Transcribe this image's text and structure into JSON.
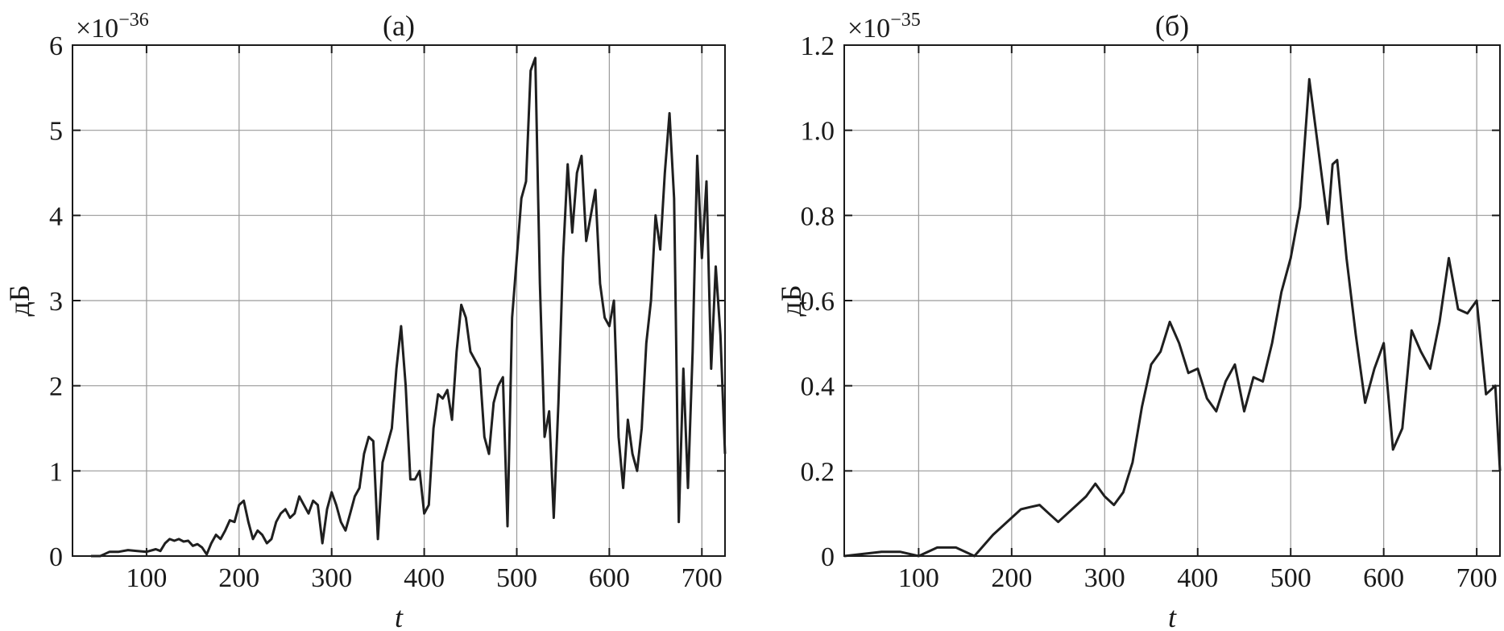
{
  "chart_data": [
    {
      "type": "line",
      "title": "(a)",
      "xlabel": "t",
      "ylabel": "дБ",
      "y_multiplier": "×10",
      "y_multiplier_exp": "−36",
      "xlim": [
        20,
        725
      ],
      "ylim": [
        0,
        6
      ],
      "xticks": [
        100,
        200,
        300,
        400,
        500,
        600,
        700
      ],
      "xtick_labels": [
        "100",
        "200",
        "300",
        "400",
        "500",
        "600",
        "700"
      ],
      "yticks": [
        0,
        1,
        2,
        3,
        4,
        5,
        6
      ],
      "ytick_labels": [
        "0",
        "1",
        "2",
        "3",
        "4",
        "5",
        "6"
      ],
      "grid": true,
      "series": [
        {
          "x": [
            40,
            50,
            60,
            70,
            80,
            90,
            100,
            110,
            115,
            120,
            125,
            130,
            135,
            140,
            145,
            150,
            155,
            160,
            165,
            170,
            175,
            180,
            185,
            190,
            195,
            200,
            205,
            210,
            215,
            220,
            225,
            230,
            235,
            240,
            245,
            250,
            255,
            260,
            265,
            270,
            275,
            280,
            285,
            290,
            295,
            300,
            305,
            310,
            315,
            320,
            325,
            330,
            335,
            340,
            345,
            350,
            355,
            360,
            365,
            370,
            375,
            380,
            385,
            390,
            395,
            400,
            405,
            410,
            415,
            420,
            425,
            430,
            435,
            440,
            445,
            450,
            455,
            460,
            465,
            470,
            475,
            480,
            485,
            490,
            495,
            500,
            505,
            510,
            515,
            520,
            525,
            530,
            535,
            540,
            545,
            550,
            555,
            560,
            565,
            570,
            575,
            580,
            585,
            590,
            595,
            600,
            605,
            610,
            615,
            620,
            625,
            630,
            635,
            640,
            645,
            650,
            655,
            660,
            665,
            670,
            675,
            680,
            685,
            690,
            695,
            700,
            705,
            710,
            715,
            720,
            725
          ],
          "y": [
            0,
            0,
            0.05,
            0.05,
            0.07,
            0.06,
            0.05,
            0.08,
            0.06,
            0.15,
            0.2,
            0.18,
            0.2,
            0.17,
            0.18,
            0.12,
            0.14,
            0.1,
            0.02,
            0.15,
            0.25,
            0.2,
            0.3,
            0.42,
            0.4,
            0.6,
            0.65,
            0.4,
            0.2,
            0.3,
            0.25,
            0.15,
            0.2,
            0.4,
            0.5,
            0.55,
            0.45,
            0.5,
            0.7,
            0.6,
            0.5,
            0.65,
            0.6,
            0.15,
            0.55,
            0.75,
            0.6,
            0.4,
            0.3,
            0.5,
            0.7,
            0.8,
            1.2,
            1.4,
            1.35,
            0.2,
            1.1,
            1.3,
            1.5,
            2.2,
            2.7,
            2.0,
            0.9,
            0.9,
            1.0,
            0.5,
            0.6,
            1.5,
            1.9,
            1.85,
            1.95,
            1.6,
            2.4,
            2.95,
            2.8,
            2.4,
            2.3,
            2.2,
            1.4,
            1.2,
            1.8,
            2.0,
            2.1,
            0.35,
            2.8,
            3.5,
            4.2,
            4.4,
            5.7,
            5.85,
            3.2,
            1.4,
            1.7,
            0.45,
            1.8,
            3.5,
            4.6,
            3.8,
            4.5,
            4.7,
            3.7,
            4.0,
            4.3,
            3.2,
            2.8,
            2.7,
            3.0,
            1.4,
            0.8,
            1.6,
            1.2,
            1.0,
            1.5,
            2.5,
            3.0,
            4.0,
            3.6,
            4.5,
            5.2,
            4.2,
            0.4,
            2.2,
            0.8,
            2.4,
            4.7,
            3.5,
            4.4,
            2.2,
            3.4,
            2.6,
            1.2
          ]
        }
      ]
    },
    {
      "type": "line",
      "title": "(б)",
      "xlabel": "t",
      "ylabel": "дБ",
      "y_multiplier": "×10",
      "y_multiplier_exp": "−35",
      "xlim": [
        20,
        725
      ],
      "ylim": [
        0,
        1.2
      ],
      "xticks": [
        100,
        200,
        300,
        400,
        500,
        600,
        700
      ],
      "xtick_labels": [
        "100",
        "200",
        "300",
        "400",
        "500",
        "600",
        "700"
      ],
      "yticks": [
        0,
        0.2,
        0.4,
        0.6,
        0.8,
        1.0,
        1.2
      ],
      "ytick_labels": [
        "0",
        "0.2",
        "0.4",
        "0.6",
        "0.8",
        "1.0",
        "1.2"
      ],
      "grid": true,
      "series": [
        {
          "x": [
            20,
            40,
            60,
            80,
            100,
            120,
            140,
            160,
            180,
            200,
            210,
            220,
            230,
            240,
            250,
            260,
            270,
            280,
            290,
            300,
            310,
            320,
            330,
            340,
            350,
            360,
            370,
            380,
            390,
            400,
            410,
            420,
            430,
            440,
            450,
            460,
            470,
            480,
            490,
            500,
            510,
            520,
            530,
            540,
            545,
            550,
            560,
            570,
            580,
            590,
            600,
            610,
            620,
            630,
            640,
            650,
            660,
            670,
            680,
            690,
            700,
            710,
            720,
            725
          ],
          "y": [
            0,
            0.005,
            0.01,
            0.01,
            0.0,
            0.02,
            0.02,
            0.0,
            0.05,
            0.09,
            0.11,
            0.115,
            0.12,
            0.1,
            0.08,
            0.1,
            0.12,
            0.14,
            0.17,
            0.14,
            0.12,
            0.15,
            0.22,
            0.35,
            0.45,
            0.48,
            0.55,
            0.5,
            0.43,
            0.44,
            0.37,
            0.34,
            0.41,
            0.45,
            0.34,
            0.42,
            0.41,
            0.5,
            0.62,
            0.7,
            0.82,
            1.12,
            0.95,
            0.78,
            0.92,
            0.93,
            0.7,
            0.52,
            0.36,
            0.44,
            0.5,
            0.25,
            0.3,
            0.53,
            0.48,
            0.44,
            0.55,
            0.7,
            0.58,
            0.57,
            0.6,
            0.38,
            0.4,
            0.2
          ]
        }
      ]
    }
  ]
}
